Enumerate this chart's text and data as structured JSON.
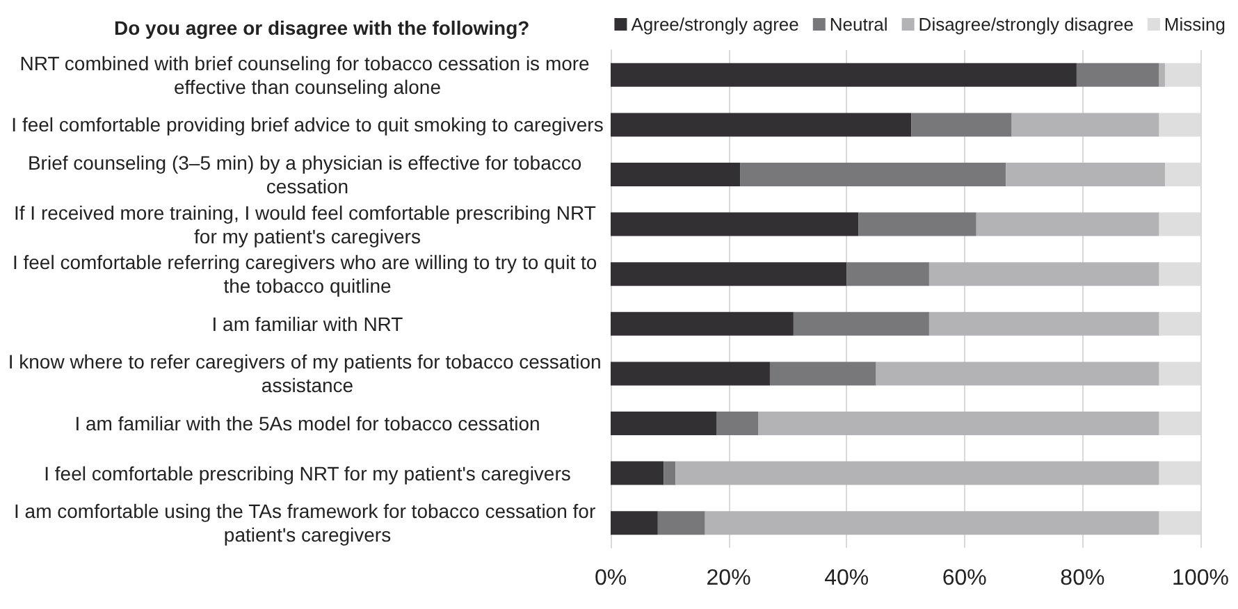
{
  "chart_data": {
    "type": "bar",
    "orientation": "horizontal",
    "stacked": true,
    "title": "Do you agree or disagree with the following?",
    "categories": [
      "NRT combined with brief counseling for tobacco cessation is more effective than counseling alone",
      "I feel comfortable providing brief advice to quit smoking to caregivers",
      "Brief counseling (3–5 min) by a physician is effective for tobacco cessation",
      "If I received more training, I would feel comfortable prescribing NRT for my patient's caregivers",
      "I feel comfortable referring caregivers who are willing to try to quit to the tobacco quitline",
      "I am familiar with NRT",
      "I know where to refer caregivers of my patients for tobacco cessation assistance",
      "I am familiar with the 5As model for tobacco cessation",
      "I feel comfortable prescribing NRT for my patient's caregivers",
      "I am comfortable using the TAs framework for tobacco cessation for patient's caregivers"
    ],
    "series": [
      {
        "name": "Agree/strongly agree",
        "color": "#333033",
        "values": [
          79,
          51,
          22,
          42,
          40,
          31,
          27,
          18,
          9,
          8
        ]
      },
      {
        "name": "Neutral",
        "color": "#78787b",
        "values": [
          14,
          17,
          45,
          20,
          14,
          23,
          18,
          7,
          2,
          8
        ]
      },
      {
        "name": "Disagree/strongly disagree",
        "color": "#b3b3b6",
        "values": [
          1,
          25,
          27,
          31,
          39,
          39,
          48,
          68,
          82,
          77
        ]
      },
      {
        "name": "Missing",
        "color": "#dedede",
        "values": [
          6,
          7,
          6,
          7,
          7,
          7,
          7,
          7,
          7,
          7
        ]
      }
    ],
    "xlim": [
      0,
      100
    ],
    "xticks": [
      {
        "value": 0,
        "label": "0%"
      },
      {
        "value": 20,
        "label": "20%"
      },
      {
        "value": 40,
        "label": "40%"
      },
      {
        "value": 60,
        "label": "60%"
      },
      {
        "value": 80,
        "label": "80%"
      },
      {
        "value": 100,
        "label": "100%"
      }
    ],
    "grid": "x",
    "legend": "top right"
  }
}
